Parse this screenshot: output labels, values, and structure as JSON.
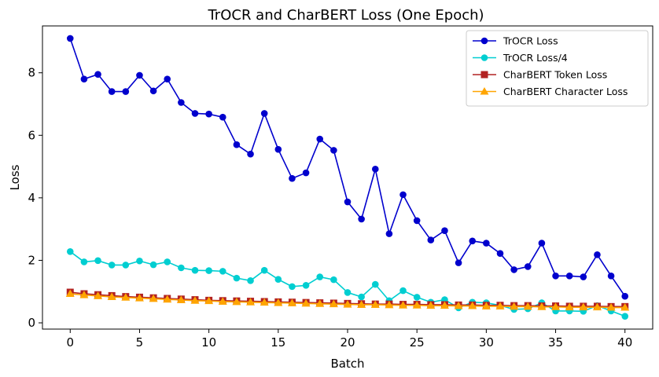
{
  "chart_data": {
    "type": "line",
    "title": "TrOCR and CharBERT Loss (One Epoch)",
    "xlabel": "Batch",
    "ylabel": "Loss",
    "xlim": [
      -2,
      42
    ],
    "ylim": [
      -0.2,
      9.5
    ],
    "xticks": [
      0,
      5,
      10,
      15,
      20,
      25,
      30,
      35,
      40
    ],
    "yticks": [
      0,
      2,
      4,
      6,
      8
    ],
    "legend_position": "top-right",
    "grid": false,
    "x": [
      0,
      1,
      2,
      3,
      4,
      5,
      6,
      7,
      8,
      9,
      10,
      11,
      12,
      13,
      14,
      15,
      16,
      17,
      18,
      19,
      20,
      21,
      22,
      23,
      24,
      25,
      26,
      27,
      28,
      29,
      30,
      31,
      32,
      33,
      34,
      35,
      36,
      37,
      38,
      39,
      40
    ],
    "series": [
      {
        "name": "TrOCR Loss",
        "color": "#0000cd",
        "marker": "circle",
        "values": [
          9.1,
          7.8,
          7.95,
          7.4,
          7.4,
          7.92,
          7.42,
          7.8,
          7.05,
          6.7,
          6.68,
          6.58,
          5.7,
          5.4,
          6.7,
          5.55,
          4.62,
          4.8,
          5.88,
          5.52,
          3.87,
          3.32,
          4.92,
          2.85,
          4.1,
          3.27,
          2.65,
          2.95,
          1.92,
          2.62,
          2.55,
          2.22,
          1.7,
          1.8,
          2.55,
          1.5,
          1.5,
          1.47,
          2.18,
          1.5,
          0.85
        ]
      },
      {
        "name": "TrOCR Loss/4",
        "color": "#00ced1",
        "marker": "circle",
        "values": [
          2.28,
          1.95,
          1.99,
          1.85,
          1.85,
          1.98,
          1.86,
          1.95,
          1.76,
          1.68,
          1.67,
          1.65,
          1.43,
          1.35,
          1.68,
          1.39,
          1.16,
          1.2,
          1.47,
          1.38,
          0.97,
          0.83,
          1.23,
          0.71,
          1.03,
          0.82,
          0.66,
          0.74,
          0.48,
          0.66,
          0.64,
          0.56,
          0.43,
          0.45,
          0.64,
          0.38,
          0.38,
          0.37,
          0.55,
          0.38,
          0.21
        ]
      },
      {
        "name": "CharBERT Token Loss",
        "color": "#b22222",
        "marker": "square",
        "values": [
          0.98,
          0.93,
          0.9,
          0.87,
          0.84,
          0.82,
          0.8,
          0.78,
          0.76,
          0.74,
          0.72,
          0.71,
          0.7,
          0.69,
          0.68,
          0.67,
          0.66,
          0.65,
          0.64,
          0.63,
          0.62,
          0.61,
          0.6,
          0.6,
          0.59,
          0.59,
          0.58,
          0.58,
          0.57,
          0.57,
          0.56,
          0.56,
          0.55,
          0.55,
          0.54,
          0.54,
          0.53,
          0.53,
          0.53,
          0.52,
          0.52
        ]
      },
      {
        "name": "CharBERT Character Loss",
        "color": "#ffa500",
        "marker": "triangle",
        "values": [
          0.93,
          0.89,
          0.86,
          0.83,
          0.81,
          0.79,
          0.77,
          0.75,
          0.73,
          0.71,
          0.7,
          0.68,
          0.67,
          0.66,
          0.65,
          0.64,
          0.63,
          0.62,
          0.61,
          0.6,
          0.59,
          0.58,
          0.58,
          0.57,
          0.56,
          0.56,
          0.55,
          0.55,
          0.54,
          0.54,
          0.53,
          0.53,
          0.52,
          0.52,
          0.51,
          0.51,
          0.5,
          0.5,
          0.5,
          0.49,
          0.49
        ]
      }
    ]
  }
}
